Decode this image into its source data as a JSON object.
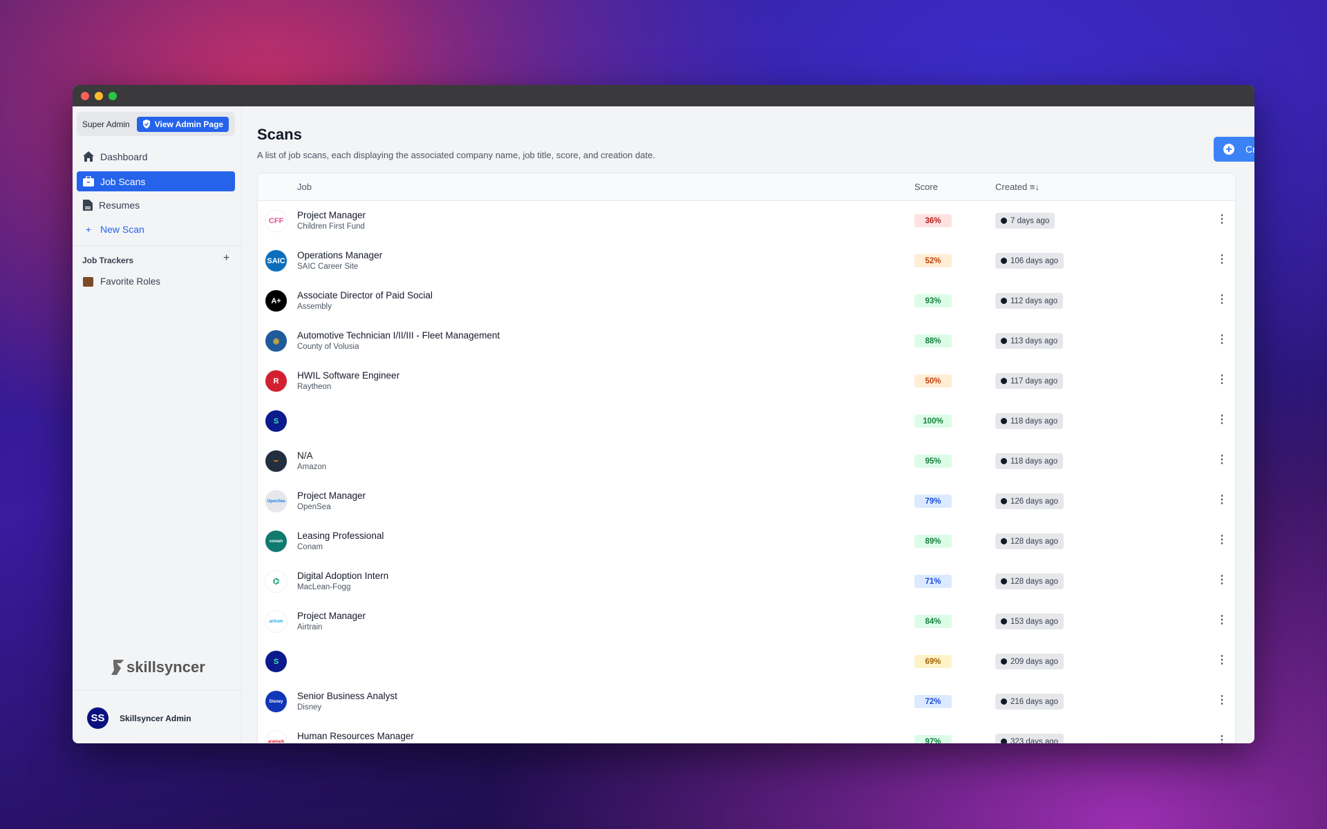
{
  "window": {
    "traffic_lights": [
      "#ff5f57",
      "#febc2e",
      "#28c840"
    ]
  },
  "sidebar": {
    "role_label": "Super Admin",
    "admin_button": "View Admin Page",
    "nav": [
      {
        "label": "Dashboard",
        "icon": "home-icon"
      },
      {
        "label": "Job Scans",
        "icon": "briefcase-icon",
        "active": true
      },
      {
        "label": "Resumes",
        "icon": "document-icon"
      },
      {
        "label": "New Scan",
        "icon": "plus-icon"
      }
    ],
    "trackers_heading": "Job Trackers",
    "trackers": [
      {
        "label": "Favorite Roles",
        "icon": "suitcase-icon"
      }
    ],
    "brand": "skillsyncer",
    "user": {
      "initials": "SS",
      "name": "Skillsyncer Admin"
    }
  },
  "main": {
    "title": "Scans",
    "subtitle": "A list of job scans, each displaying the associated company name, job title, score, and creation date.",
    "create_button": "Create Scan",
    "columns": {
      "job": "Job",
      "score": "Score",
      "created": "Created"
    },
    "accent": "#2563eb",
    "rows": [
      {
        "title": "Project Manager",
        "company": "Children First Fund",
        "score": "36%",
        "level": "red",
        "created": "7 days ago",
        "logo": "CFF",
        "logo_bg": "#ffffff",
        "logo_fg": "#e0559a"
      },
      {
        "title": "Operations Manager",
        "company": "SAIC Career Site",
        "score": "52%",
        "level": "orange",
        "created": "106 days ago",
        "logo": "SAIC",
        "logo_bg": "#0a6ebd",
        "logo_fg": "#ffffff"
      },
      {
        "title": "Associate Director of Paid Social",
        "company": "Assembly",
        "score": "93%",
        "level": "green",
        "created": "112 days ago",
        "logo": "A+",
        "logo_bg": "#000000",
        "logo_fg": "#ffffff"
      },
      {
        "title": "Automotive Technician I/II/III - Fleet Management",
        "company": "County of Volusia",
        "score": "88%",
        "level": "green",
        "created": "113 days ago",
        "logo": "◉",
        "logo_bg": "#1e5a9c",
        "logo_fg": "#c8a83a"
      },
      {
        "title": "HWIL Software Engineer",
        "company": "Raytheon",
        "score": "50%",
        "level": "orange",
        "created": "117 days ago",
        "logo": "R",
        "logo_bg": "#d32030",
        "logo_fg": "#ffffff"
      },
      {
        "title": "",
        "company": "",
        "score": "100%",
        "level": "green",
        "created": "118 days ago",
        "logo": "S",
        "logo_bg": "#0b1a8c",
        "logo_fg": "#3ee6b0"
      },
      {
        "title": "N/A",
        "company": "Amazon",
        "score": "95%",
        "level": "green",
        "created": "118 days ago",
        "logo": "⌣",
        "logo_bg": "#232f3e",
        "logo_fg": "#ff9900"
      },
      {
        "title": "Project Manager",
        "company": "OpenSea",
        "score": "79%",
        "level": "blue",
        "created": "126 days ago",
        "logo": "OpenSea",
        "logo_bg": "#e5e7eb",
        "logo_fg": "#2081e2"
      },
      {
        "title": "Leasing Professional",
        "company": "Conam",
        "score": "89%",
        "level": "green",
        "created": "128 days ago",
        "logo": "conam",
        "logo_bg": "#0f7a6e",
        "logo_fg": "#ffffff"
      },
      {
        "title": "Digital Adoption Intern",
        "company": "MacLean-Fogg",
        "score": "71%",
        "level": "blue",
        "created": "128 days ago",
        "logo": "⌬",
        "logo_bg": "#ffffff",
        "logo_fg": "#16a36a"
      },
      {
        "title": "Project Manager",
        "company": "Airtrain",
        "score": "84%",
        "level": "green",
        "created": "153 days ago",
        "logo": "airtrain",
        "logo_bg": "#ffffff",
        "logo_fg": "#1aa3e0"
      },
      {
        "title": "",
        "company": "",
        "score": "69%",
        "level": "yellow",
        "created": "209 days ago",
        "logo": "S",
        "logo_bg": "#0b1a8c",
        "logo_fg": "#3ee6b0"
      },
      {
        "title": "Senior Business Analyst",
        "company": "Disney",
        "score": "72%",
        "level": "blue",
        "created": "216 days ago",
        "logo": "Disney",
        "logo_bg": "#1136b8",
        "logo_fg": "#ffffff"
      },
      {
        "title": "Human Resources Manager",
        "company": "",
        "score": "97%",
        "level": "green",
        "created": "323 days ago",
        "logo": "aramark",
        "logo_bg": "#ffffff",
        "logo_fg": "#e0101e"
      }
    ]
  },
  "score_colors": {
    "red": [
      "#fee2e2",
      "#b91c1c"
    ],
    "orange": [
      "#ffedd5",
      "#c2410c"
    ],
    "green": [
      "#dcfce7",
      "#15803d"
    ],
    "blue": [
      "#dbeafe",
      "#1d4ed8"
    ],
    "yellow": [
      "#fef3c7",
      "#a16207"
    ]
  }
}
